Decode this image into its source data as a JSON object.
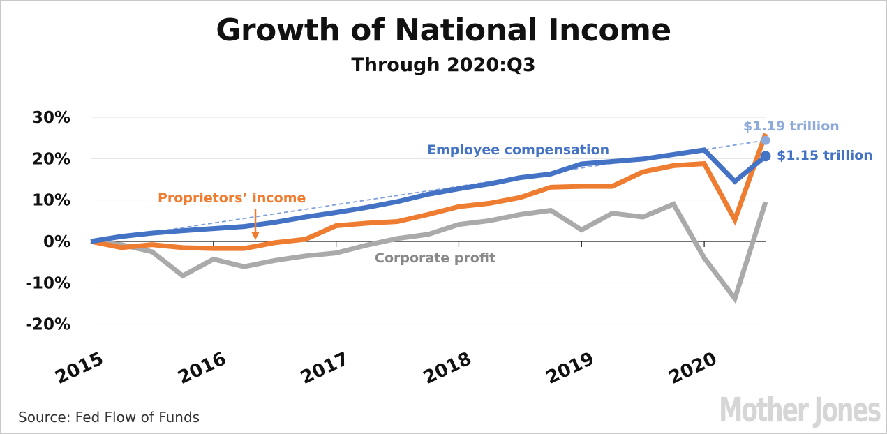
{
  "chart_data": {
    "type": "line",
    "title": "Growth of National Income",
    "subtitle": "Through 2020:Q3",
    "source": "Source: Fed Flow of Funds",
    "brand": "Mother Jones",
    "ylim": [
      -20,
      30
    ],
    "yticks": [
      "30%",
      "20%",
      "10%",
      "0%",
      "-10%",
      "-20%"
    ],
    "ytick_values": [
      30,
      20,
      10,
      0,
      -10,
      -20
    ],
    "xlim": [
      2015,
      2020.5
    ],
    "xticks": [
      "2015",
      "2016",
      "2017",
      "2018",
      "2019",
      "2020"
    ],
    "xtick_values": [
      2015,
      2016,
      2017,
      2018,
      2019,
      2020
    ],
    "grid": true,
    "x": [
      2015,
      2015.25,
      2015.5,
      2015.75,
      2016,
      2016.25,
      2016.5,
      2016.75,
      2017,
      2017.25,
      2017.5,
      2017.75,
      2018,
      2018.25,
      2018.5,
      2018.75,
      2019,
      2019.25,
      2019.5,
      2019.75,
      2020,
      2020.25,
      2020.5
    ],
    "series": [
      {
        "name": "Corporate profit",
        "color": "#aaaaaa",
        "values": [
          0,
          -0.8,
          -2.5,
          -8.3,
          -4.3,
          -6.1,
          -4.6,
          -3.5,
          -2.8,
          -0.9,
          0.7,
          1.7,
          4.1,
          5,
          6.5,
          7.5,
          2.8,
          6.8,
          5.9,
          9,
          -4,
          -13.8,
          9.5
        ]
      },
      {
        "name": "Proprietors’ income",
        "color": "#ef7d31",
        "values": [
          0,
          -1.5,
          -0.8,
          -1.5,
          -1.7,
          -1.7,
          -0.3,
          0.5,
          3.8,
          4.4,
          4.8,
          6.5,
          8.4,
          9.2,
          10.6,
          13.1,
          13.3,
          13.3,
          16.8,
          18.3,
          18.8,
          5.2,
          26
        ]
      },
      {
        "name": "Employee compensation",
        "color": "#4472c4",
        "values": [
          0,
          1.2,
          2,
          2.6,
          3.1,
          3.6,
          4.6,
          5.9,
          7,
          8.2,
          9.6,
          11.4,
          12.7,
          13.9,
          15.4,
          16.3,
          18.7,
          19.3,
          19.9,
          21,
          22.1,
          14.5,
          20.6
        ]
      }
    ],
    "trend": {
      "color": "#7f9fdb",
      "from": [
        2015,
        0
      ],
      "to": [
        2020.5,
        24.4
      ]
    },
    "annotations": [
      {
        "text": "$1.19 trillion",
        "x": 2020.5,
        "y": 24.4,
        "color": "#8eaadb"
      },
      {
        "text": "$1.15 trillion",
        "x": 2020.5,
        "y": 20.6,
        "color": "#4472c4"
      }
    ]
  }
}
